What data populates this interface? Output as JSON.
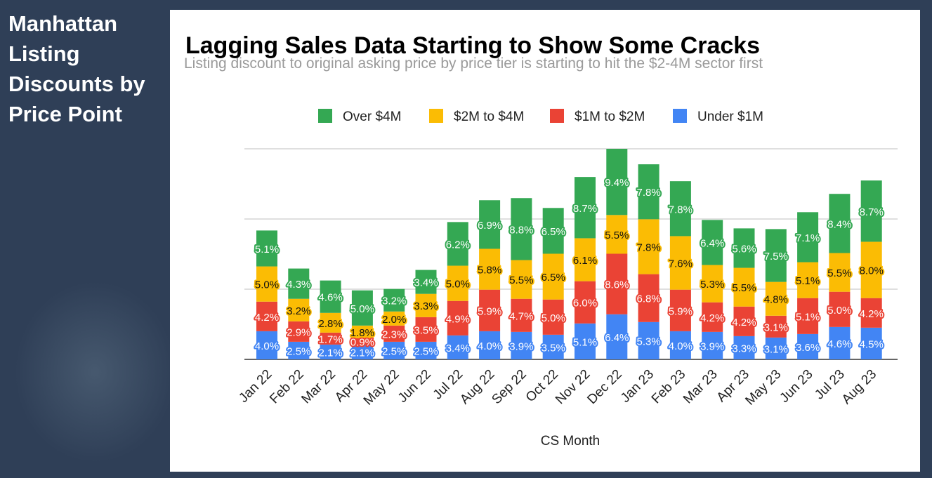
{
  "sidebar": {
    "title_lines": [
      "Manhattan",
      "Listing",
      "Discounts by",
      "Price Point"
    ]
  },
  "chart_data": {
    "type": "bar",
    "stacked": true,
    "title": "Lagging Sales Data Starting to Show Some Cracks",
    "subtitle": "Listing discount to original asking price by price tier is starting to hit the $2-4M sector first",
    "xlabel": "CS Month",
    "ylabel": "",
    "grid": true,
    "legend_position": "top",
    "categories": [
      "Jan 22",
      "Feb 22",
      "Mar 22",
      "Apr 22",
      "May 22",
      "Jun 22",
      "Jul 22",
      "Aug 22",
      "Sep 22",
      "Oct 22",
      "Nov 22",
      "Dec 22",
      "Jan 23",
      "Feb 23",
      "Mar 23",
      "Apr 23",
      "May 23",
      "Jun 23",
      "Jul 23",
      "Aug 23"
    ],
    "series": [
      {
        "name": "Under $1M",
        "color": "#4285f4",
        "values": [
          4.0,
          2.5,
          2.1,
          2.1,
          2.5,
          2.5,
          3.4,
          4.0,
          3.9,
          3.5,
          5.1,
          6.4,
          5.3,
          4.0,
          3.9,
          3.3,
          3.1,
          3.6,
          4.6,
          4.5
        ]
      },
      {
        "name": "$1M to $2M",
        "color": "#ea4335",
        "values": [
          4.2,
          2.9,
          1.7,
          0.9,
          2.3,
          3.5,
          4.9,
          5.9,
          4.7,
          5.0,
          6.0,
          8.6,
          6.8,
          5.9,
          4.2,
          4.2,
          3.1,
          5.1,
          5.0,
          4.2
        ]
      },
      {
        "name": "$2M to $4M",
        "color": "#fbbc04",
        "values": [
          5.0,
          3.2,
          2.8,
          1.8,
          2.0,
          3.3,
          5.0,
          5.8,
          5.5,
          6.5,
          6.1,
          5.5,
          7.8,
          7.6,
          5.3,
          5.5,
          4.8,
          5.1,
          5.5,
          8.0
        ]
      },
      {
        "name": "Over $4M",
        "color": "#34a853",
        "values": [
          5.1,
          4.3,
          4.6,
          5.0,
          3.2,
          3.4,
          6.2,
          6.9,
          8.8,
          6.5,
          8.7,
          9.4,
          7.8,
          7.8,
          6.4,
          5.6,
          7.5,
          7.1,
          8.4,
          8.7
        ]
      }
    ],
    "legend_order": [
      "Over $4M",
      "$2M to $4M",
      "$1M to $2M",
      "Under $1M"
    ],
    "value_suffix": "%"
  }
}
